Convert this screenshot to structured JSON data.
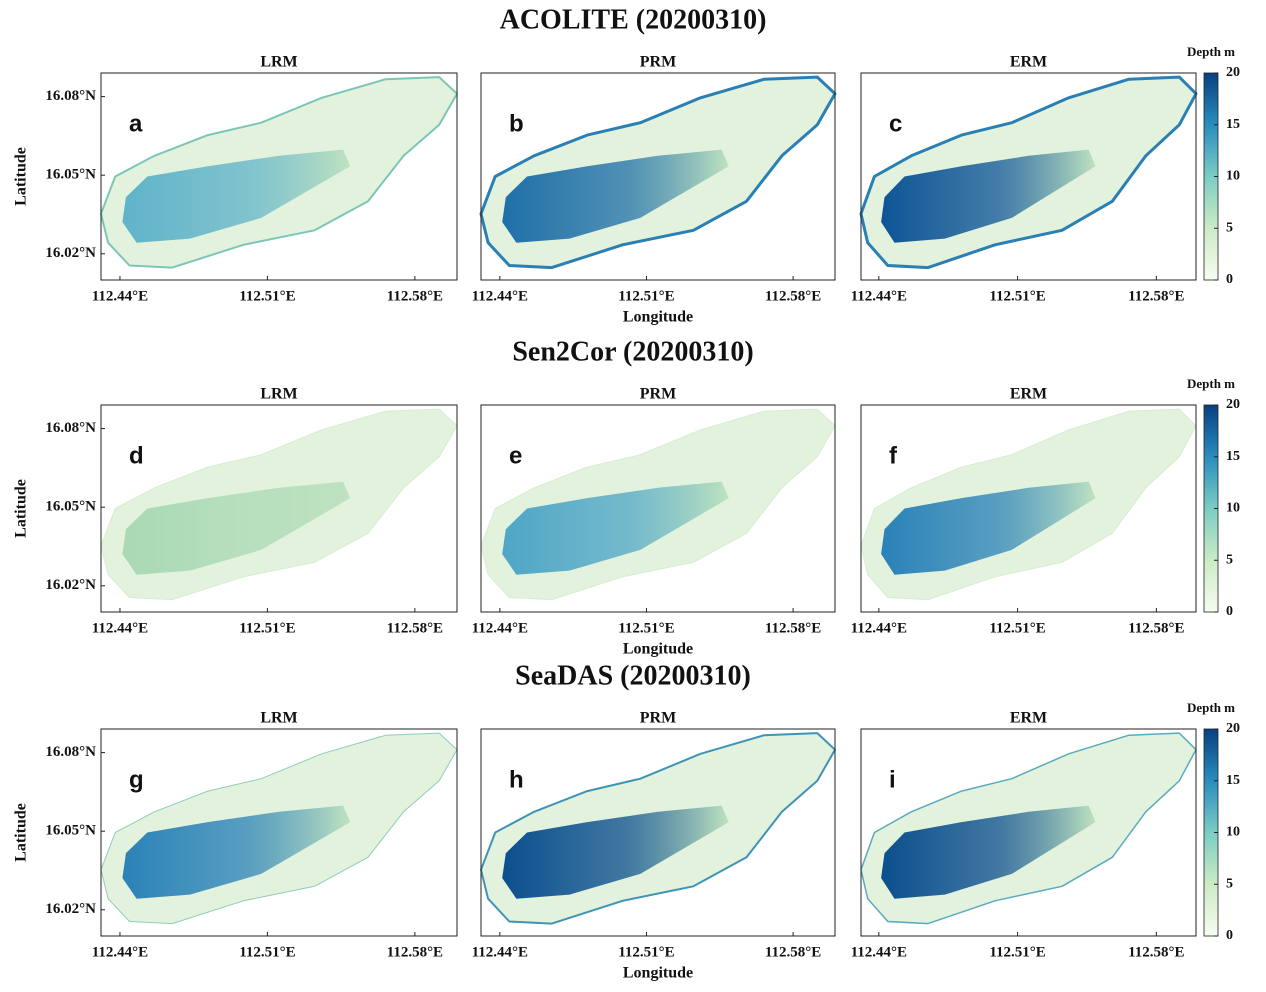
{
  "figures": [
    {
      "title": "ACOLITE (20200310)",
      "panels": [
        {
          "title": "LRM",
          "letter": "a"
        },
        {
          "title": "PRM",
          "letter": "b"
        },
        {
          "title": "ERM",
          "letter": "c"
        }
      ],
      "y_label": "Latitude",
      "x_label": "Longitude",
      "xlim": [
        112.431,
        112.6
      ],
      "ylim": [
        16.01,
        16.089
      ],
      "xticks": [
        {
          "value": 112.44,
          "label": "112.44°E"
        },
        {
          "value": 112.51,
          "label": "112.51°E"
        },
        {
          "value": 112.58,
          "label": "112.58°E"
        }
      ],
      "yticks": [
        {
          "value": 16.02,
          "label": "16.02°N"
        },
        {
          "value": 16.05,
          "label": "16.05°N"
        },
        {
          "value": 16.08,
          "label": "16.08°N"
        }
      ],
      "colorbar": {
        "title": "Depth m",
        "lim": [
          0,
          20
        ],
        "ticks": [
          0,
          5,
          10,
          15,
          20
        ]
      }
    },
    {
      "title": "Sen2Cor (20200310)",
      "panels": [
        {
          "title": "LRM",
          "letter": "d"
        },
        {
          "title": "PRM",
          "letter": "e"
        },
        {
          "title": "ERM",
          "letter": "f"
        }
      ],
      "y_label": "Latitude",
      "x_label": "Longitude",
      "xlim": [
        112.431,
        112.6
      ],
      "ylim": [
        16.01,
        16.089
      ],
      "xticks": [
        {
          "value": 112.44,
          "label": "112.44°E"
        },
        {
          "value": 112.51,
          "label": "112.51°E"
        },
        {
          "value": 112.58,
          "label": "112.58°E"
        }
      ],
      "yticks": [
        {
          "value": 16.02,
          "label": "16.02°N"
        },
        {
          "value": 16.05,
          "label": "16.05°N"
        },
        {
          "value": 16.08,
          "label": "16.08°N"
        }
      ],
      "colorbar": {
        "title": "Depth m",
        "lim": [
          0,
          20
        ],
        "ticks": [
          0,
          5,
          10,
          15,
          20
        ]
      }
    },
    {
      "title": "SeaDAS (20200310)",
      "panels": [
        {
          "title": "LRM",
          "letter": "g"
        },
        {
          "title": "PRM",
          "letter": "h"
        },
        {
          "title": "ERM",
          "letter": "i"
        }
      ],
      "y_label": "Latitude",
      "x_label": "Longitude",
      "xlim": [
        112.431,
        112.6
      ],
      "ylim": [
        16.01,
        16.089
      ],
      "xticks": [
        {
          "value": 112.44,
          "label": "112.44°E"
        },
        {
          "value": 112.51,
          "label": "112.51°E"
        },
        {
          "value": 112.58,
          "label": "112.58°E"
        }
      ],
      "yticks": [
        {
          "value": 16.02,
          "label": "16.02°N"
        },
        {
          "value": 16.05,
          "label": "16.05°N"
        },
        {
          "value": 16.08,
          "label": "16.08°N"
        }
      ],
      "colorbar": {
        "title": "Depth m",
        "lim": [
          0,
          20
        ],
        "ticks": [
          0,
          5,
          10,
          15,
          20
        ]
      }
    }
  ]
}
